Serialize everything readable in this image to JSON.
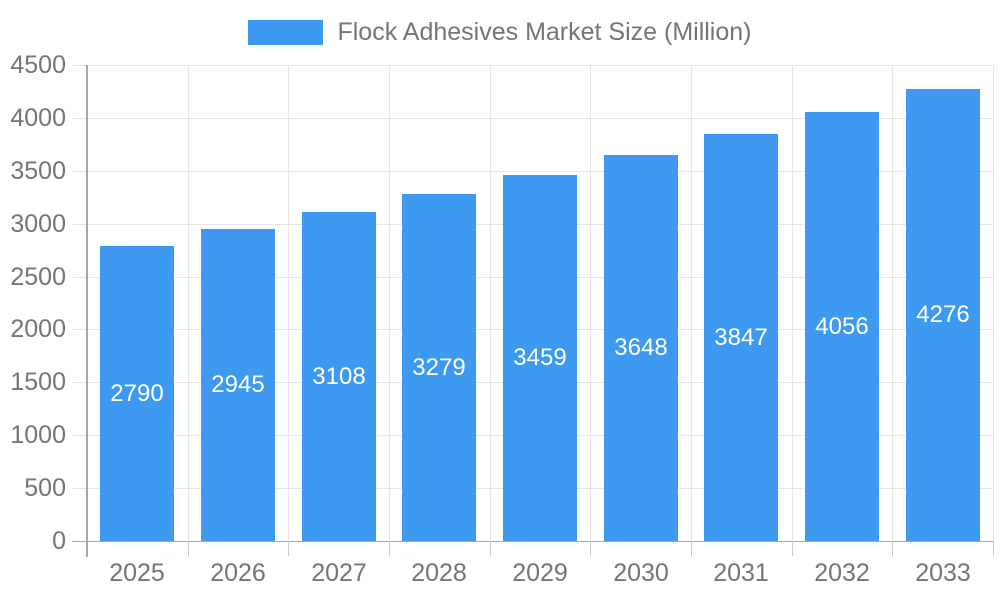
{
  "chart_data": {
    "type": "bar",
    "title": "Flock Adhesives Market Size (Million)",
    "categories": [
      "2025",
      "2026",
      "2027",
      "2028",
      "2029",
      "2030",
      "2031",
      "2032",
      "2033"
    ],
    "values": [
      2790,
      2945,
      3108,
      3279,
      3459,
      3648,
      3847,
      4056,
      4276
    ],
    "xlabel": "",
    "ylabel": "",
    "ylim": [
      0,
      4500
    ],
    "y_tick_step": 500,
    "y_tick_labels": [
      "0",
      "500",
      "1000",
      "1500",
      "2000",
      "2500",
      "3000",
      "3500",
      "4000",
      "4500"
    ],
    "legend_position": "top-center",
    "grid": "horizontal-and-vertical",
    "value_label_position": "inside-middle",
    "colors": {
      "bar": "#3d9af0",
      "value_label": "#ffffff",
      "axis_text": "#757575",
      "legend_text": "#757575",
      "grid_line": "#e6e6e6",
      "axis_line": "#a8a8a8",
      "tick_line": "#cccccc",
      "background": "#ffffff"
    }
  }
}
